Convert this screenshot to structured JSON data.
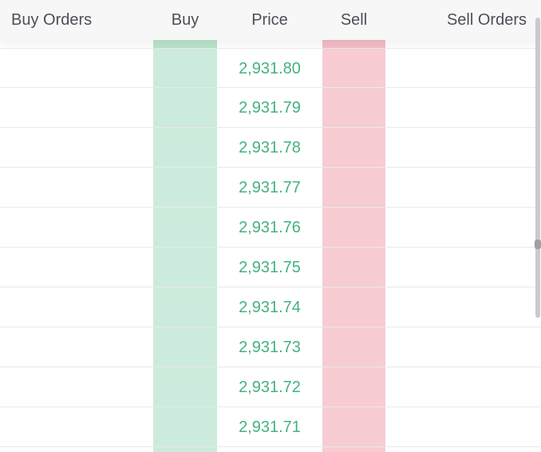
{
  "header": {
    "buy_orders": "Buy Orders",
    "buy": "Buy",
    "price": "Price",
    "sell": "Sell",
    "sell_orders": "Sell Orders"
  },
  "rows": [
    {
      "price": "2,931.80"
    },
    {
      "price": "2,931.79"
    },
    {
      "price": "2,931.78"
    },
    {
      "price": "2,931.77"
    },
    {
      "price": "2,931.76"
    },
    {
      "price": "2,931.75"
    },
    {
      "price": "2,931.74"
    },
    {
      "price": "2,931.73"
    },
    {
      "price": "2,931.72"
    },
    {
      "price": "2,931.71"
    }
  ],
  "colors": {
    "buy_column": "#cdebdc",
    "sell_column": "#f7ccd2",
    "price_text": "#43b27f",
    "header_text": "#4d4f57"
  }
}
